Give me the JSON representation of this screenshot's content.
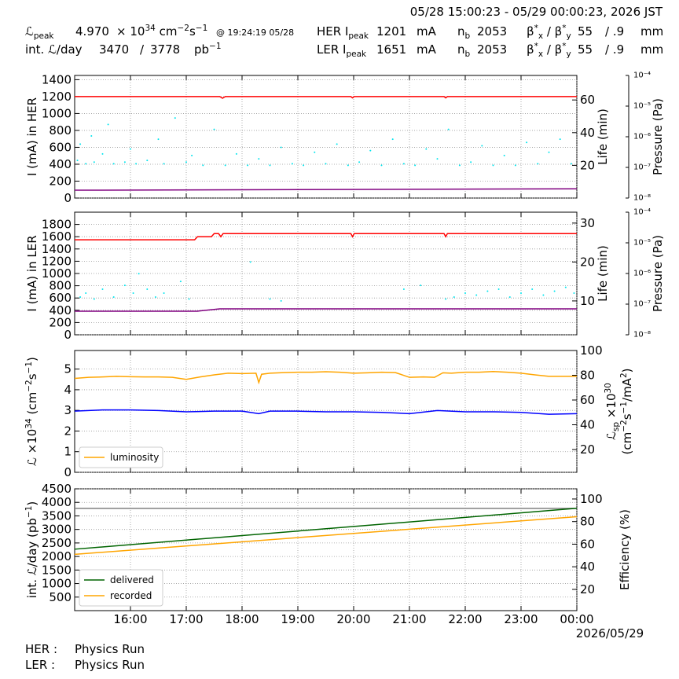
{
  "header": {
    "range": "05/28 15:00:23 - 05/29 00:00:23, 2026 JST",
    "lpeak_label": [
      "ℒ",
      {
        "sub": "peak"
      }
    ],
    "lpeak": "4.970",
    "lpeak_unit": [
      "× 10",
      {
        "sup": "34"
      },
      " cm",
      {
        "sup": "−2"
      },
      "s",
      {
        "sup": "−1"
      }
    ],
    "lpeak_time": "@ 19:24:19 05/28",
    "intl_label": "int. ℒ/day",
    "intl": "3470",
    "intl_sep": "/",
    "intl_max": "3778",
    "intl_unit": [
      "pb",
      {
        "sup": "−1"
      }
    ],
    "her": {
      "label": [
        "HER I",
        {
          "sub": "peak"
        }
      ],
      "ipeak": "1201",
      "unit": "mA",
      "nb_label": [
        "n",
        {
          "sub": "b"
        }
      ],
      "nb": "2053",
      "beta_label": [
        "β",
        {
          "sup": "*"
        },
        {
          "sub": "x"
        },
        " / β",
        {
          "sup": "*"
        },
        {
          "sub": "y"
        }
      ],
      "betax": "55",
      "betay": "/ .9",
      "beta_unit": "mm"
    },
    "ler": {
      "label": [
        "LER I",
        {
          "sub": "peak"
        }
      ],
      "ipeak": "1651",
      "unit": "mA",
      "nb_label": [
        "n",
        {
          "sub": "b"
        }
      ],
      "nb": "2053",
      "beta_label": [
        "β",
        {
          "sup": "*"
        },
        {
          "sub": "x"
        },
        " / β",
        {
          "sup": "*"
        },
        {
          "sub": "y"
        }
      ],
      "betax": "55",
      "betay": "/ .9",
      "beta_unit": "mm"
    }
  },
  "chart_data": [
    {
      "type": "line",
      "grid": true,
      "xlim": [
        15,
        24
      ],
      "xticks": [
        16,
        17,
        18,
        19,
        20,
        21,
        22,
        23,
        24
      ],
      "xticklabels": false,
      "ylabel": [
        [
          "I (mA) in HER"
        ]
      ],
      "y2label": [
        [
          "Life (min)"
        ]
      ],
      "y3label": [
        [
          "Pressure (Pa)"
        ]
      ],
      "ylim": [
        0,
        1450
      ],
      "yticks": [
        0,
        200,
        400,
        600,
        800,
        1000,
        1200,
        1400
      ],
      "y2lim": [
        0,
        75
      ],
      "y2ticks": [
        20,
        40,
        60
      ],
      "y3lim": [
        1e-08,
        0.0001
      ],
      "y3log": true,
      "y3ticks": [
        {
          "value": 1e-08,
          "label": "10⁻⁸"
        },
        {
          "value": 1e-07,
          "label": "10⁻⁷"
        },
        {
          "value": 1e-06,
          "label": "10⁻⁶"
        },
        {
          "value": 1e-05,
          "label": "10⁻⁵"
        },
        {
          "value": 0.0001,
          "label": "10⁻⁴"
        }
      ],
      "series": [
        {
          "type": "scatter",
          "axis": "y2",
          "color": "#00e5ee",
          "x": [
            15.05,
            15.1,
            15.2,
            15.3,
            15.35,
            15.5,
            15.6,
            15.7,
            15.9,
            16.0,
            16.1,
            16.3,
            16.5,
            16.6,
            16.8,
            17.0,
            17.1,
            17.3,
            17.5,
            17.7,
            17.9,
            18.1,
            18.3,
            18.5,
            18.7,
            18.9,
            19.1,
            19.3,
            19.5,
            19.7,
            19.9,
            20.1,
            20.3,
            20.5,
            20.7,
            20.9,
            21.1,
            21.3,
            21.5,
            21.7,
            21.9,
            22.1,
            22.3,
            22.5,
            22.7,
            22.9,
            23.1,
            23.3,
            23.5,
            23.7,
            23.9
          ],
          "values": [
            23,
            33,
            21,
            38,
            22,
            27,
            45,
            21,
            22,
            30,
            21,
            23,
            36,
            21,
            49,
            22,
            26,
            20,
            42,
            20,
            27,
            20,
            24,
            20,
            31,
            21,
            20,
            28,
            21,
            33,
            20,
            22,
            29,
            20,
            36,
            21,
            20,
            30,
            24,
            42,
            20,
            22,
            32,
            20,
            26,
            20,
            34,
            21,
            28,
            36,
            21
          ]
        },
        {
          "type": "line",
          "axis": "y",
          "color": "#ff0000",
          "x": [
            15,
            17.6,
            17.65,
            17.7,
            19.95,
            19.98,
            20.01,
            21.62,
            21.65,
            21.68,
            24
          ],
          "values": [
            1200,
            1200,
            1180,
            1200,
            1200,
            1185,
            1200,
            1200,
            1185,
            1200,
            1200
          ]
        },
        {
          "type": "line",
          "axis": "y3",
          "color": "#800080",
          "x": [
            15,
            24
          ],
          "values": [
            1.8e-08,
            2e-08
          ]
        }
      ]
    },
    {
      "type": "line",
      "grid": true,
      "xlim": [
        15,
        24
      ],
      "xticks": [
        16,
        17,
        18,
        19,
        20,
        21,
        22,
        23,
        24
      ],
      "xticklabels": false,
      "ylabel": [
        [
          "I (mA) in LER"
        ]
      ],
      "y2label": [
        [
          "Life (min)"
        ]
      ],
      "y3label": [
        [
          "Pressure (Pa)"
        ]
      ],
      "ylim": [
        0,
        2000
      ],
      "yticks": [
        0,
        200,
        400,
        600,
        800,
        1000,
        1200,
        1400,
        1600,
        1800
      ],
      "y2lim": [
        1.3,
        32.8
      ],
      "y2ticks": [
        10,
        20,
        30
      ],
      "y3lim": [
        1e-08,
        0.0001
      ],
      "y3log": true,
      "y3ticks": [
        {
          "value": 1e-08,
          "label": "10⁻⁸"
        },
        {
          "value": 1e-07,
          "label": "10⁻⁷"
        },
        {
          "value": 1e-06,
          "label": "10⁻⁶"
        },
        {
          "value": 1e-05,
          "label": "10⁻⁵"
        },
        {
          "value": 0.0001,
          "label": "10⁻⁴"
        }
      ],
      "series": [
        {
          "type": "scatter",
          "axis": "y2",
          "color": "#00e5ee",
          "x": [
            15.1,
            15.2,
            15.35,
            15.5,
            15.7,
            15.9,
            16.05,
            16.15,
            16.3,
            16.45,
            16.6,
            16.9,
            17.05,
            18.15,
            18.5,
            18.7,
            20.9,
            21.2,
            21.65,
            21.8,
            22.0,
            22.2,
            22.4,
            22.6,
            22.8,
            23.0,
            23.2,
            23.4,
            23.6,
            23.8,
            23.95
          ],
          "values": [
            11,
            12,
            10.5,
            13,
            11,
            14,
            12,
            17,
            13,
            11,
            12,
            15,
            10.5,
            20,
            10.5,
            10,
            13,
            14,
            10.5,
            11,
            12,
            11.5,
            12.5,
            13,
            11,
            12,
            13,
            11.5,
            12.5,
            13.5,
            12
          ]
        },
        {
          "type": "line",
          "axis": "y",
          "color": "#ff0000",
          "x": [
            15,
            17.15,
            17.2,
            17.45,
            17.5,
            17.58,
            17.62,
            17.66,
            19.95,
            19.98,
            20.01,
            21.62,
            21.65,
            21.68,
            24
          ],
          "values": [
            1550,
            1550,
            1600,
            1600,
            1650,
            1650,
            1600,
            1650,
            1650,
            1600,
            1650,
            1650,
            1600,
            1650,
            1650
          ]
        },
        {
          "type": "line",
          "axis": "y3",
          "color": "#800080",
          "x": [
            15,
            17.2,
            17.6,
            24
          ],
          "values": [
            5.9e-08,
            5.9e-08,
            7e-08,
            7e-08
          ]
        }
      ]
    },
    {
      "type": "line",
      "grid": true,
      "xlim": [
        15,
        24
      ],
      "xticks": [
        16,
        17,
        18,
        19,
        20,
        21,
        22,
        23,
        24
      ],
      "xticklabels": false,
      "ylabel": [
        [
          "ℒ ×10",
          {
            "sup": "34"
          },
          " (cm",
          {
            "sup": "−2"
          },
          "s",
          {
            "sup": "−1"
          },
          ")"
        ]
      ],
      "y2label": [
        [
          "ℒ",
          {
            "sub": "sp"
          },
          " ×10",
          {
            "sup": "30"
          }
        ],
        [
          "(cm",
          {
            "sup": "−2"
          },
          "s",
          {
            "sup": "−1"
          },
          "/mA",
          {
            "sup": "2"
          },
          ")"
        ]
      ],
      "ylim": [
        0,
        5.9
      ],
      "yticks": [
        0,
        1,
        2,
        3,
        4,
        5
      ],
      "y2lim": [
        1.6,
        100
      ],
      "y2ticks": [
        20,
        40,
        60,
        80,
        100
      ],
      "legend": "lower left",
      "series": [
        {
          "type": "line",
          "axis": "y2",
          "color": "#0000ff",
          "x": [
            15,
            15.5,
            16,
            16.5,
            17,
            17.5,
            18,
            18.3,
            18.5,
            19,
            19.5,
            20,
            20.5,
            21,
            21.5,
            22,
            22.5,
            23,
            23.5,
            24
          ],
          "values": [
            51,
            52,
            52,
            51.5,
            50.5,
            51,
            51,
            49,
            51,
            51,
            50.5,
            50.5,
            50,
            49,
            51.5,
            50.5,
            50.5,
            50,
            48.5,
            49
          ]
        },
        {
          "type": "line",
          "axis": "y",
          "name": "luminosity",
          "color": "#ffa500",
          "x": [
            15,
            15.25,
            15.5,
            15.75,
            16,
            16.25,
            16.5,
            16.75,
            17,
            17.25,
            17.5,
            17.75,
            18,
            18.25,
            18.3,
            18.35,
            18.5,
            18.75,
            19,
            19.25,
            19.5,
            19.75,
            20,
            20.25,
            20.5,
            20.75,
            21,
            21.25,
            21.45,
            21.6,
            21.75,
            22,
            22.25,
            22.5,
            22.75,
            23,
            23.25,
            23.5,
            23.75,
            24
          ],
          "values": [
            4.55,
            4.6,
            4.62,
            4.65,
            4.63,
            4.62,
            4.62,
            4.6,
            4.5,
            4.62,
            4.72,
            4.8,
            4.78,
            4.8,
            4.35,
            4.75,
            4.8,
            4.83,
            4.85,
            4.85,
            4.87,
            4.85,
            4.8,
            4.82,
            4.85,
            4.83,
            4.6,
            4.62,
            4.6,
            4.82,
            4.8,
            4.85,
            4.85,
            4.88,
            4.85,
            4.8,
            4.72,
            4.65,
            4.65,
            4.65
          ]
        }
      ]
    },
    {
      "type": "line",
      "grid": true,
      "xlim": [
        15,
        24
      ],
      "xticks": [
        {
          "value": 16,
          "label": "16:00"
        },
        {
          "value": 17,
          "label": "17:00"
        },
        {
          "value": 18,
          "label": "18:00"
        },
        {
          "value": 19,
          "label": "19:00"
        },
        {
          "value": 20,
          "label": "20:00"
        },
        {
          "value": 21,
          "label": "21:00"
        },
        {
          "value": 22,
          "label": "22:00"
        },
        {
          "value": 23,
          "label": "23:00"
        },
        {
          "value": 24,
          "label": "00:00"
        }
      ],
      "xlabel": "2026/05/29",
      "ylabel": [
        [
          "int. ℒ/day (pb",
          {
            "sup": "−1"
          },
          ")"
        ]
      ],
      "y2label": [
        [
          "Efficiency (%)"
        ]
      ],
      "ylim": [
        0,
        4500
      ],
      "yticks": [
        500,
        1000,
        1500,
        2000,
        2500,
        3000,
        3500,
        4000,
        4500
      ],
      "y2lim": [
        1.2,
        109
      ],
      "y2ticks": [
        20,
        40,
        60,
        80,
        100
      ],
      "legend": "lower left",
      "series": [
        {
          "type": "line",
          "axis": "y",
          "color": "#808080",
          "x": [
            15,
            24
          ],
          "values": [
            3778,
            3778
          ]
        },
        {
          "type": "line",
          "axis": "y",
          "name": "delivered",
          "color": "#006400",
          "x": [
            15,
            24
          ],
          "values": [
            2270,
            3780
          ]
        },
        {
          "type": "line",
          "axis": "y",
          "name": "recorded",
          "color": "#ffa500",
          "x": [
            15,
            24
          ],
          "values": [
            2080,
            3470
          ]
        }
      ]
    }
  ],
  "footer": {
    "her_label": "HER :",
    "her_status": "Physics Run",
    "ler_label": "LER :",
    "ler_status": "Physics Run"
  }
}
